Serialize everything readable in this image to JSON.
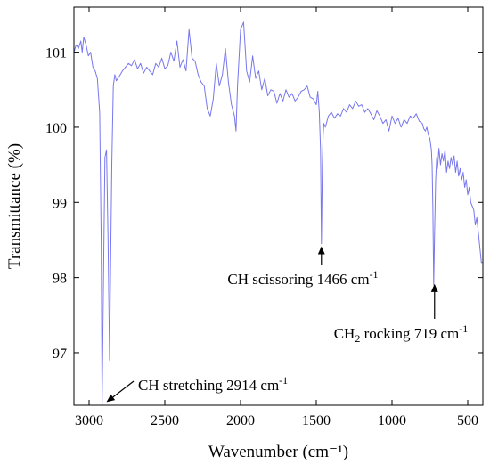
{
  "chart_data": {
    "type": "line",
    "title": "",
    "xlabel": "Wavenumber (cm⁻¹)",
    "ylabel": "Transmittance (%)",
    "xlim": [
      3100,
      400
    ],
    "ylim": [
      96.3,
      101.6
    ],
    "x_reversed": true,
    "grid": false,
    "legend": "none",
    "x_ticks": [
      3000,
      2500,
      2000,
      1500,
      1000,
      500
    ],
    "y_ticks": [
      97,
      98,
      99,
      100,
      101
    ],
    "colors": {
      "line": "#7777ee",
      "axis": "#000000"
    },
    "series": [
      {
        "x": [
          3100,
          3085,
          3070,
          3055,
          3045,
          3035,
          3020,
          3005,
          2990,
          2975,
          2960,
          2945,
          2930,
          2920,
          2914,
          2905,
          2895,
          2885,
          2875,
          2865,
          2860,
          2850,
          2840,
          2830,
          2820,
          2800,
          2780,
          2760,
          2740,
          2720,
          2700,
          2680,
          2660,
          2640,
          2620,
          2600,
          2580,
          2560,
          2540,
          2520,
          2500,
          2480,
          2460,
          2440,
          2420,
          2400,
          2380,
          2360,
          2340,
          2320,
          2300,
          2280,
          2260,
          2240,
          2220,
          2200,
          2180,
          2160,
          2140,
          2120,
          2100,
          2080,
          2060,
          2040,
          2030,
          2020,
          2000,
          1980,
          1960,
          1940,
          1920,
          1900,
          1880,
          1860,
          1840,
          1820,
          1800,
          1780,
          1760,
          1740,
          1720,
          1700,
          1680,
          1660,
          1640,
          1620,
          1600,
          1580,
          1560,
          1540,
          1520,
          1500,
          1490,
          1480,
          1472,
          1466,
          1460,
          1455,
          1450,
          1440,
          1420,
          1400,
          1380,
          1360,
          1340,
          1320,
          1300,
          1280,
          1260,
          1240,
          1220,
          1200,
          1180,
          1160,
          1140,
          1120,
          1100,
          1080,
          1060,
          1040,
          1020,
          1000,
          980,
          960,
          940,
          920,
          900,
          880,
          860,
          840,
          820,
          800,
          790,
          780,
          770,
          760,
          750,
          740,
          735,
          730,
          725,
          719,
          712,
          705,
          700,
          690,
          680,
          670,
          660,
          650,
          640,
          630,
          620,
          610,
          600,
          590,
          580,
          570,
          560,
          550,
          540,
          530,
          520,
          510,
          500,
          490,
          480,
          470,
          460,
          450,
          440,
          430,
          420,
          410,
          400
        ],
        "y": [
          101.0,
          101.1,
          101.05,
          101.15,
          101.0,
          101.2,
          101.1,
          100.95,
          101.0,
          100.8,
          100.75,
          100.65,
          100.2,
          98.5,
          96.3,
          98.0,
          99.6,
          99.7,
          98.5,
          96.9,
          97.8,
          99.5,
          100.55,
          100.7,
          100.62,
          100.68,
          100.75,
          100.8,
          100.85,
          100.82,
          100.9,
          100.78,
          100.85,
          100.72,
          100.8,
          100.75,
          100.7,
          100.85,
          100.8,
          100.92,
          100.78,
          100.82,
          101.0,
          100.88,
          101.15,
          100.8,
          100.9,
          100.75,
          101.3,
          100.92,
          100.88,
          100.7,
          100.6,
          100.55,
          100.25,
          100.15,
          100.38,
          100.85,
          100.55,
          100.7,
          101.05,
          100.6,
          100.3,
          100.15,
          99.95,
          100.55,
          101.3,
          101.4,
          100.75,
          100.6,
          100.95,
          100.65,
          100.75,
          100.5,
          100.65,
          100.42,
          100.5,
          100.48,
          100.32,
          100.45,
          100.35,
          100.5,
          100.4,
          100.45,
          100.35,
          100.4,
          100.48,
          100.5,
          100.55,
          100.4,
          100.38,
          100.3,
          100.48,
          100.2,
          99.7,
          98.45,
          99.5,
          99.9,
          100.05,
          100.0,
          100.15,
          100.2,
          100.12,
          100.18,
          100.15,
          100.25,
          100.2,
          100.3,
          100.25,
          100.35,
          100.28,
          100.3,
          100.2,
          100.25,
          100.18,
          100.1,
          100.22,
          100.15,
          100.05,
          100.1,
          99.95,
          100.15,
          100.05,
          100.12,
          100.0,
          100.1,
          100.05,
          100.15,
          100.12,
          100.18,
          100.08,
          100.05,
          99.98,
          99.95,
          100.0,
          99.9,
          99.85,
          99.7,
          99.5,
          98.9,
          97.9,
          98.6,
          99.3,
          99.6,
          99.45,
          99.72,
          99.5,
          99.65,
          99.55,
          99.7,
          99.4,
          99.55,
          99.45,
          99.6,
          99.5,
          99.62,
          99.4,
          99.55,
          99.35,
          99.45,
          99.3,
          99.4,
          99.2,
          99.3,
          99.1,
          99.2,
          99.0,
          98.95,
          98.9,
          98.7,
          98.8,
          98.6,
          98.4,
          98.2,
          98.2
        ]
      }
    ],
    "annotations": [
      {
        "text": "CH stretching 2914 cm",
        "sup": "-1",
        "tip_x": 2880,
        "tip_y": 96.35
      },
      {
        "text": "CH scissoring 1466 cm",
        "sup": "-1",
        "tip_x": 1466,
        "tip_y": 98.45
      },
      {
        "text": "CH",
        "sub": "2",
        "text2": " rocking 719 cm",
        "sup": "-1",
        "tip_x": 719,
        "tip_y": 97.95
      }
    ]
  }
}
